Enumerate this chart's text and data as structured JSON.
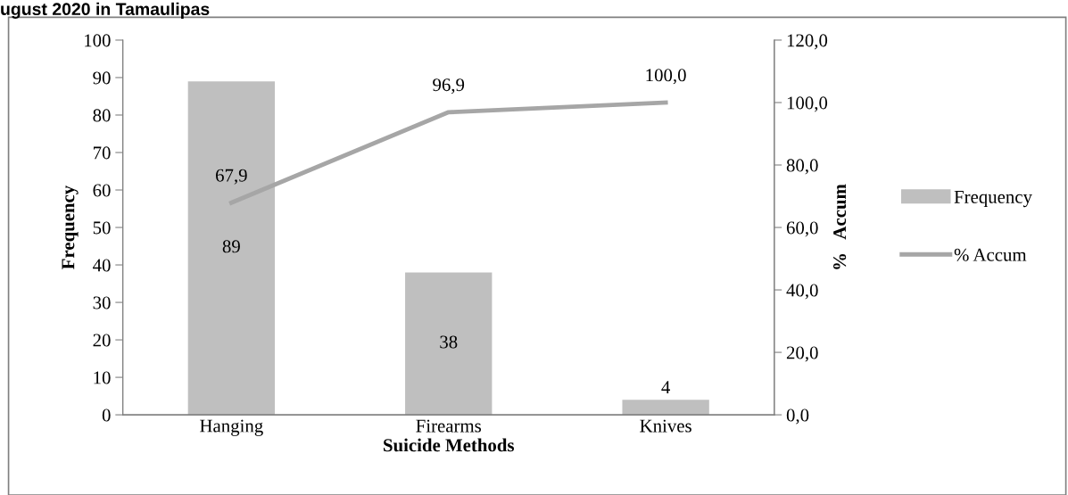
{
  "chart_data": {
    "type": "bar",
    "title": "ugust 2020 in Tamaulipas",
    "xlabel": "Suicide Methods",
    "ylabel": "Frequency",
    "y2label": "%   Accum",
    "categories": [
      "Hanging",
      "Firearms",
      "Knives"
    ],
    "series": [
      {
        "name": "Frequency",
        "color": "#bfbfbf",
        "values": [
          89,
          38,
          4
        ],
        "value_labels": [
          "89",
          "38",
          "4"
        ]
      },
      {
        "name": "% Accum",
        "type": "line",
        "axis": "y2",
        "color": "#a6a6a6",
        "values": [
          67.9,
          96.9,
          100.0
        ],
        "value_labels": [
          "67,9",
          "96,9",
          "100,0"
        ]
      }
    ],
    "ylim": [
      0,
      100
    ],
    "yticks": [
      0,
      10,
      20,
      30,
      40,
      50,
      60,
      70,
      80,
      90,
      100
    ],
    "y2lim": [
      0,
      120
    ],
    "y2ticks": [
      {
        "value": 0,
        "label": "0,0"
      },
      {
        "value": 20,
        "label": "20,0"
      },
      {
        "value": 40,
        "label": "40,0"
      },
      {
        "value": 60,
        "label": "60,0"
      },
      {
        "value": 80,
        "label": "80,0"
      },
      {
        "value": 100,
        "label": "100,0"
      },
      {
        "value": 120,
        "label": "120,0"
      }
    ],
    "grid": false,
    "legend": "right",
    "marker": "none",
    "line_style": "solid"
  }
}
